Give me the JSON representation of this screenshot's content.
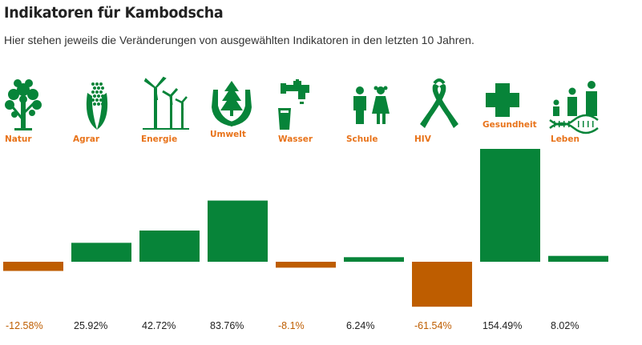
{
  "title": "Indikatoren für Kambodscha",
  "subtitle": "Hier stehen jeweils die Veränderungen von ausgewählten Indikatoren in den letzten 10 Jahren.",
  "colors": {
    "positive": "#078439",
    "negative": "#BE5D00",
    "label": "#E8731A",
    "text": "#222222"
  },
  "chart_data": {
    "type": "bar",
    "title": "Indikatoren für Kambodscha",
    "subtitle": "Hier stehen jeweils die Veränderungen von ausgewählten Indikatoren in den letzten 10 Jahren.",
    "unit": "%",
    "categories": [
      "Natur",
      "Agrar",
      "Energie",
      "Umwelt",
      "Wasser",
      "Schule",
      "HIV",
      "Gesundheit",
      "Leben"
    ],
    "icons": [
      "tree-icon",
      "corn-icon",
      "wind-turbine-icon",
      "hands-tree-icon",
      "water-tap-icon",
      "children-icon",
      "ribbon-icon",
      "medical-cross-icon",
      "family-dna-icon"
    ],
    "values": [
      -12.58,
      25.92,
      42.72,
      83.76,
      -8.1,
      6.24,
      -61.54,
      154.49,
      8.02
    ],
    "value_labels": [
      "-12.58%",
      "25.92%",
      "42.72%",
      "83.76%",
      "-8.1%",
      "6.24%",
      "-61.54%",
      "154.49%",
      "8.02%"
    ],
    "ylim": [
      -61.54,
      154.49
    ],
    "legend": "none",
    "grid": false
  }
}
